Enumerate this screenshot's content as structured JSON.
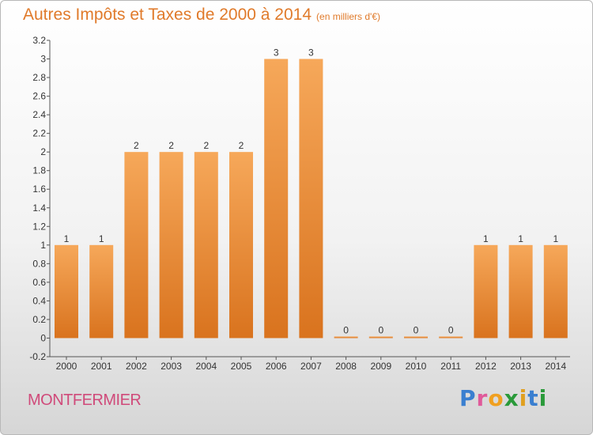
{
  "title": "Autres Impôts et Taxes de 2000 à 2014",
  "unit_note": "(en milliers d'€)",
  "commune": "MONTFERMIER",
  "logo": {
    "letters": [
      "P",
      "r",
      "o",
      "x",
      "i",
      "t",
      "i"
    ],
    "colors": [
      "#3a7fd0",
      "#e05a9a",
      "#f0a020",
      "#2a9a3a",
      "#e0a020",
      "#3a7fd0",
      "#2a9a3a"
    ]
  },
  "colors": {
    "bar_top": "#f6a85a",
    "bar_bottom": "#d9731e",
    "axis_text": "#333333"
  },
  "chart_data": {
    "type": "bar",
    "categories": [
      "2000",
      "2001",
      "2002",
      "2003",
      "2004",
      "2005",
      "2006",
      "2007",
      "2008",
      "2009",
      "2010",
      "2011",
      "2012",
      "2013",
      "2014"
    ],
    "values": [
      1,
      1,
      2,
      2,
      2,
      2,
      3,
      3,
      0,
      0,
      0,
      0,
      1,
      1,
      1
    ],
    "data_labels": [
      "1",
      "1",
      "2",
      "2",
      "2",
      "2",
      "3",
      "3",
      "0",
      "0",
      "0",
      "0",
      "1",
      "1",
      "1"
    ],
    "yticks": [
      "-0.2",
      "0",
      "0.2",
      "0.4",
      "0.6",
      "0.8",
      "1",
      "1.2",
      "1.4",
      "1.6",
      "1.8",
      "2",
      "2.2",
      "2.4",
      "2.6",
      "2.8",
      "3",
      "3.2"
    ],
    "ylim": [
      -0.2,
      3.2
    ],
    "grid": false
  }
}
